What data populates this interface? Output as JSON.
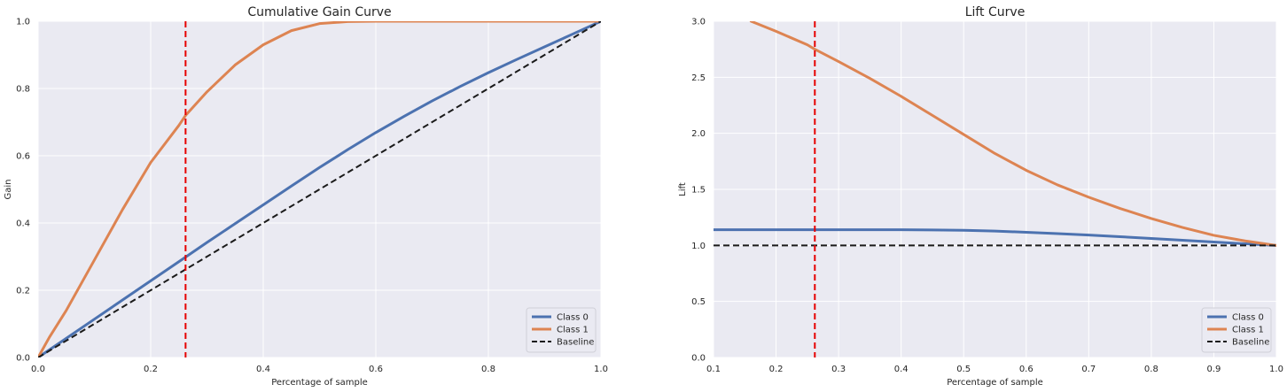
{
  "chart_data": [
    {
      "type": "line",
      "title": "Cumulative Gain Curve",
      "xlabel": "Percentage of sample",
      "ylabel": "Gain",
      "xlim": [
        0.0,
        1.0
      ],
      "ylim": [
        0.0,
        1.0
      ],
      "xticks": [
        "0.0",
        "0.2",
        "0.4",
        "0.6",
        "0.8",
        "1.0"
      ],
      "yticks": [
        "0.0",
        "0.2",
        "0.4",
        "0.6",
        "0.8",
        "1.0"
      ],
      "grid": true,
      "legend_position": "lower-right",
      "vline": {
        "x": 0.262,
        "color": "#e60000",
        "style": "dashed"
      },
      "series": [
        {
          "name": "Class 0",
          "color": "#4c72b0",
          "style": "solid",
          "x": [
            0,
            0.05,
            0.1,
            0.15,
            0.2,
            0.25,
            0.3,
            0.35,
            0.4,
            0.45,
            0.5,
            0.55,
            0.6,
            0.65,
            0.7,
            0.75,
            0.8,
            0.85,
            0.9,
            0.95,
            1.0
          ],
          "y": [
            0,
            0.057,
            0.114,
            0.171,
            0.228,
            0.285,
            0.342,
            0.398,
            0.454,
            0.51,
            0.565,
            0.618,
            0.669,
            0.717,
            0.763,
            0.806,
            0.847,
            0.886,
            0.924,
            0.962,
            1.0
          ]
        },
        {
          "name": "Class 1",
          "color": "#dd8452",
          "style": "solid",
          "x": [
            0,
            0.02,
            0.05,
            0.1,
            0.15,
            0.2,
            0.25,
            0.262,
            0.3,
            0.35,
            0.4,
            0.45,
            0.5,
            0.55,
            0.6,
            0.7,
            0.8,
            0.9,
            1.0
          ],
          "y": [
            0,
            0.06,
            0.14,
            0.29,
            0.44,
            0.58,
            0.69,
            0.72,
            0.79,
            0.87,
            0.93,
            0.972,
            0.993,
            0.999,
            1.0,
            1.0,
            1.0,
            1.0,
            1.0
          ]
        },
        {
          "name": "Baseline",
          "color": "#1a1a1a",
          "style": "dashed",
          "x": [
            0,
            1.0
          ],
          "y": [
            0,
            1.0
          ]
        }
      ]
    },
    {
      "type": "line",
      "title": "Lift Curve",
      "xlabel": "Percentage of sample",
      "ylabel": "Lift",
      "xlim": [
        0.1,
        1.0
      ],
      "ylim": [
        0.0,
        3.0
      ],
      "xticks": [
        "0.1",
        "0.2",
        "0.3",
        "0.4",
        "0.5",
        "0.6",
        "0.7",
        "0.8",
        "0.9",
        "1.0"
      ],
      "yticks": [
        "0.0",
        "0.5",
        "1.0",
        "1.5",
        "2.0",
        "2.5",
        "3.0"
      ],
      "grid": true,
      "legend_position": "lower-right",
      "vline": {
        "x": 0.262,
        "color": "#e60000",
        "style": "dashed"
      },
      "series": [
        {
          "name": "Class 0",
          "color": "#4c72b0",
          "style": "solid",
          "x": [
            0.1,
            0.2,
            0.3,
            0.4,
            0.45,
            0.5,
            0.55,
            0.6,
            0.65,
            0.7,
            0.75,
            0.8,
            0.85,
            0.9,
            0.95,
            1.0
          ],
          "y": [
            1.14,
            1.14,
            1.14,
            1.14,
            1.138,
            1.135,
            1.128,
            1.117,
            1.105,
            1.092,
            1.078,
            1.062,
            1.046,
            1.03,
            1.014,
            1.0
          ]
        },
        {
          "name": "Class 1",
          "color": "#dd8452",
          "style": "solid",
          "x": [
            0.16,
            0.2,
            0.25,
            0.262,
            0.3,
            0.35,
            0.4,
            0.45,
            0.5,
            0.55,
            0.6,
            0.65,
            0.7,
            0.75,
            0.8,
            0.85,
            0.9,
            0.95,
            1.0
          ],
          "y": [
            3.0,
            2.91,
            2.79,
            2.75,
            2.64,
            2.49,
            2.33,
            2.16,
            1.99,
            1.82,
            1.67,
            1.54,
            1.43,
            1.33,
            1.24,
            1.16,
            1.09,
            1.04,
            1.0
          ]
        },
        {
          "name": "Baseline",
          "color": "#1a1a1a",
          "style": "dashed",
          "x": [
            0.1,
            1.0
          ],
          "y": [
            1.0,
            1.0
          ]
        }
      ]
    }
  ]
}
